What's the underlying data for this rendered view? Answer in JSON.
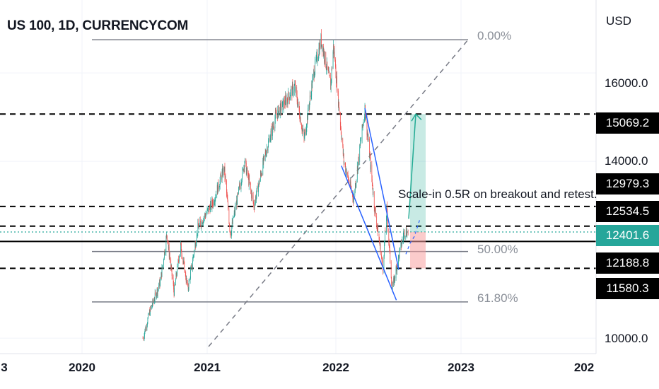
{
  "header": {
    "title": "US 100, 1D, CURRENCYCOM",
    "currency": "USD"
  },
  "colors": {
    "up": "#26a69a",
    "down": "#ef5350",
    "fib": "#787b86",
    "trend": "#2962ff",
    "level": "#000000",
    "target": "#22ab94",
    "stop": "#f7a1a1"
  },
  "chart_data": {
    "type": "candlestick",
    "title": "US 100, 1D, CURRENCYCOM",
    "x_ticks": [
      "3",
      "2020",
      "2021",
      "2022",
      "2023",
      "202"
    ],
    "y_ticks": [
      "16000.0",
      "14000.0",
      "10000.0"
    ],
    "y_range": [
      9650,
      17650
    ],
    "price_path": [
      [
        "2020-06-25",
        10000
      ],
      [
        "2020-07-15",
        10600
      ],
      [
        "2020-08-15",
        11300
      ],
      [
        "2020-09-02",
        12350
      ],
      [
        "2020-09-23",
        11050
      ],
      [
        "2020-10-12",
        12100
      ],
      [
        "2020-11-02",
        11100
      ],
      [
        "2020-12-01",
        12500
      ],
      [
        "2021-01-15",
        13100
      ],
      [
        "2021-02-15",
        13850
      ],
      [
        "2021-03-05",
        12350
      ],
      [
        "2021-04-15",
        14000
      ],
      [
        "2021-05-12",
        13000
      ],
      [
        "2021-06-15",
        14200
      ],
      [
        "2021-07-15",
        15050
      ],
      [
        "2021-08-15",
        15400
      ],
      [
        "2021-09-07",
        15700
      ],
      [
        "2021-10-04",
        14500
      ],
      [
        "2021-11-01",
        16000
      ],
      [
        "2021-11-22",
        16750
      ],
      [
        "2021-12-20",
        15700
      ],
      [
        "2021-12-28",
        16600
      ],
      [
        "2022-01-27",
        14000
      ],
      [
        "2022-02-24",
        13150
      ],
      [
        "2022-03-29",
        15200
      ],
      [
        "2022-04-26",
        12950
      ],
      [
        "2022-05-20",
        11600
      ],
      [
        "2022-05-31",
        12900
      ],
      [
        "2022-06-16",
        11100
      ],
      [
        "2022-07-01",
        11700
      ],
      [
        "2022-07-20",
        12400
      ],
      [
        "2022-08-01",
        12400
      ]
    ],
    "fib_levels": [
      {
        "label": "0.00%",
        "price": 16750
      },
      {
        "label": "50.00%",
        "price": 11960
      },
      {
        "label": "61.80%",
        "price": 10820
      }
    ],
    "horizontal_levels": [
      {
        "price": 15069.2,
        "label": "15069.2",
        "style": "dashed"
      },
      {
        "price": 12979.3,
        "label": "12979.3",
        "style": "dashed"
      },
      {
        "price": 12534.5,
        "label": "12534.5",
        "style": "dashed"
      },
      {
        "price": 12401.6,
        "label": "12401.6",
        "style": "dotted",
        "current": true
      },
      {
        "price": 12188.8,
        "label": "12188.8",
        "style": "solid"
      },
      {
        "price": 11580.3,
        "label": "11580.3",
        "style": "dashed"
      }
    ],
    "annotation": "Scale-in 0.5R on breakout and retest."
  }
}
